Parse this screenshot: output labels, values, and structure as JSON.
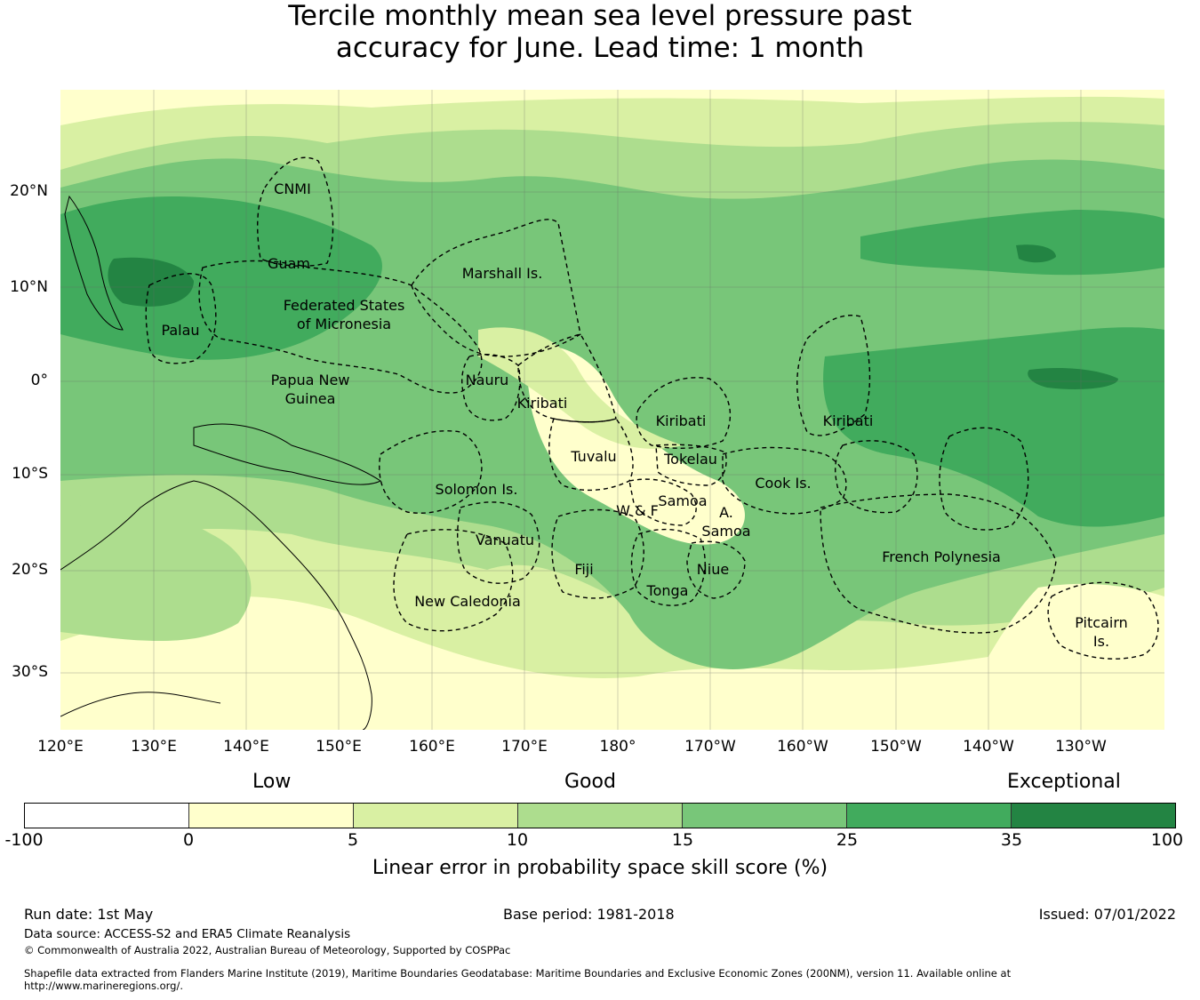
{
  "title": {
    "line1": "Tercile monthly mean sea level pressure past",
    "line2": "accuracy for June. Lead time: 1 month"
  },
  "map": {
    "lat_labels": [
      "20°N",
      "10°N",
      "0°",
      "10°S",
      "20°S",
      "30°S"
    ],
    "lon_labels": [
      "120°E",
      "130°E",
      "140°E",
      "150°E",
      "160°E",
      "170°E",
      "180°",
      "170°W",
      "160°W",
      "150°W",
      "140°W",
      "130°W"
    ],
    "regions": [
      "CNMI",
      "Guam",
      "Marshall Is.",
      "Federated States",
      "of Micronesia",
      "Palau",
      "Papua New",
      "Guinea",
      "Nauru",
      "Kiribati",
      "Kiribati",
      "Kiribati",
      "Tuvalu",
      "Tokelau",
      "Solomon Is.",
      "Samoa",
      "W & F",
      "A.",
      "Samoa",
      "Cook Is.",
      "Vanuatu",
      "Fiji",
      "Niue",
      "Tonga",
      "New Caledonia",
      "French Polynesia",
      "Pitcairn",
      "Is."
    ]
  },
  "legend": {
    "qualitative": [
      "Low",
      "Good",
      "Exceptional"
    ],
    "ticks": [
      "-100",
      "0",
      "5",
      "10",
      "15",
      "25",
      "35",
      "100"
    ],
    "colors": [
      "#ffffff",
      "#ffffcc",
      "#d9f0a3",
      "#addd8e",
      "#78c679",
      "#41ab5d",
      "#238443"
    ],
    "label": "Linear error in probability space skill score (%)"
  },
  "footer": {
    "run_date": "Run date: 1st May",
    "base_period": "Base period: 1981-2018",
    "issued": "Issued: 07/01/2022",
    "data_source": "Data source: ACCESS-S2 and ERA5 Climate Reanalysis",
    "copyright": "© Commonwealth of Australia 2022, Australian Bureau of Meteorology, Supported by COSPPac",
    "shapefile_1": "Shapefile data extracted from Flanders Marine Institute (2019), Maritime Boundaries Geodatabase: Maritime Boundaries and Exclusive Economic Zones (200NM), version 11. Available online at",
    "shapefile_2": "http://www.marineregions.org/."
  }
}
